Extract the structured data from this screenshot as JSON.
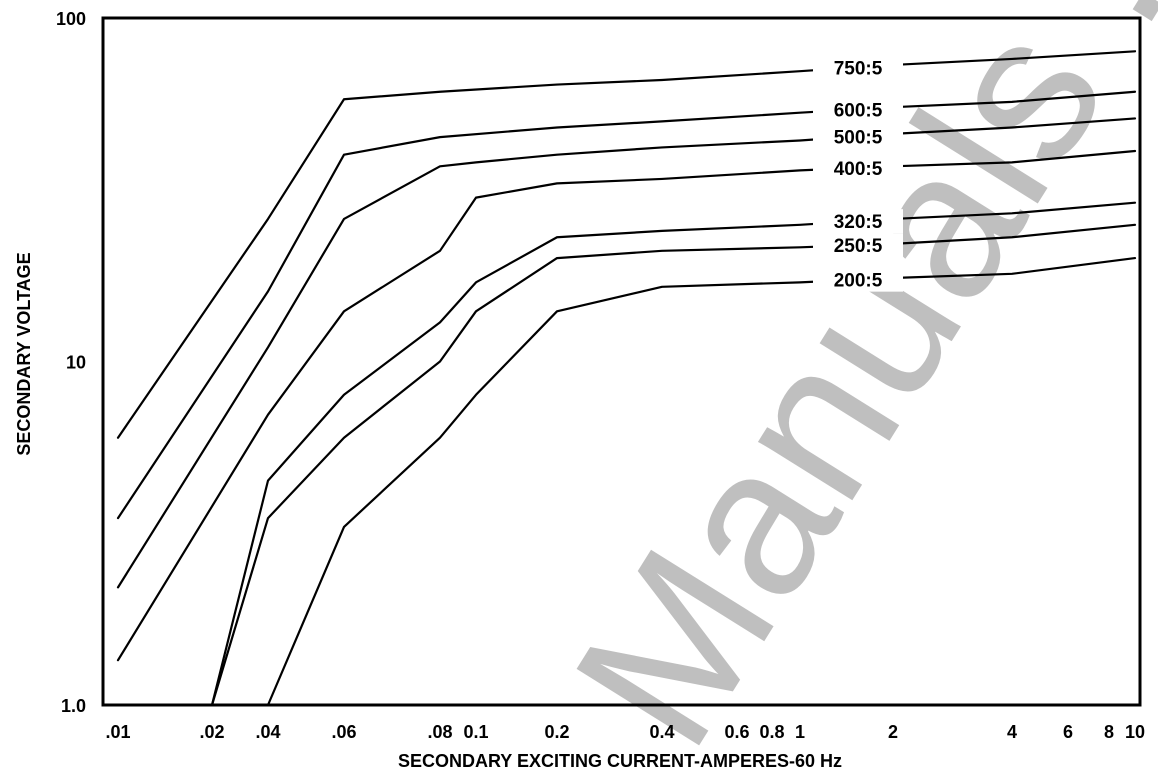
{
  "watermark": "Manuals . c",
  "chart_data": {
    "type": "line",
    "xlabel": "SECONDARY EXCITING CURRENT-AMPERES-60 Hz",
    "ylabel": "SECONDARY VOLTAGE",
    "y_scale": "log",
    "ylim": [
      1,
      100
    ],
    "x_ticks": [
      ".01",
      ".02",
      ".04",
      ".06",
      ".08",
      "0.1",
      "0.2",
      "0.4",
      "0.6",
      "0.8",
      "1",
      "2",
      "4",
      "6",
      "8",
      "10"
    ],
    "y_ticks": [
      "1.0",
      "10",
      "100"
    ],
    "series": [
      {
        "name": "750:5",
        "label": "750:5",
        "points": [
          [
            ".01",
            6
          ],
          [
            ".04",
            26
          ],
          [
            ".06",
            58
          ],
          [
            ".08",
            61
          ],
          [
            "0.2",
            64
          ],
          [
            "0.4",
            66
          ],
          [
            "1",
            70
          ],
          [
            "2",
            73
          ],
          [
            "4",
            76
          ],
          [
            "10",
            80
          ]
        ]
      },
      {
        "name": "600:5",
        "label": "600:5",
        "points": [
          [
            ".01",
            3.5
          ],
          [
            ".04",
            16
          ],
          [
            ".06",
            40
          ],
          [
            ".08",
            45
          ],
          [
            "0.2",
            48
          ],
          [
            "0.4",
            50
          ],
          [
            "1",
            53
          ],
          [
            "2",
            55
          ],
          [
            "4",
            57
          ],
          [
            "10",
            61
          ]
        ]
      },
      {
        "name": "500:5",
        "label": "500:5",
        "points": [
          [
            ".01",
            2.2
          ],
          [
            ".04",
            11
          ],
          [
            ".06",
            26
          ],
          [
            "0.08",
            37
          ],
          [
            "0.1",
            38
          ],
          [
            "0.2",
            40
          ],
          [
            "0.4",
            42
          ],
          [
            "1",
            44
          ],
          [
            "2",
            46
          ],
          [
            "4",
            48
          ],
          [
            "10",
            51
          ]
        ]
      },
      {
        "name": "400:5",
        "label": "400:5",
        "points": [
          [
            ".01",
            1.35
          ],
          [
            ".04",
            7
          ],
          [
            ".06",
            14
          ],
          [
            "0.08",
            21
          ],
          [
            "0.1",
            30
          ],
          [
            "0.2",
            33
          ],
          [
            "0.4",
            34
          ],
          [
            "1",
            36
          ],
          [
            "2",
            37
          ],
          [
            "4",
            38
          ],
          [
            "10",
            41
          ]
        ]
      },
      {
        "name": "320:5",
        "label": "320:5",
        "points": [
          [
            ".02",
            1.0
          ],
          [
            ".04",
            4.5
          ],
          [
            ".06",
            8
          ],
          [
            "0.08",
            13
          ],
          [
            "0.1",
            17
          ],
          [
            "0.2",
            23
          ],
          [
            "0.4",
            24
          ],
          [
            "1",
            25
          ],
          [
            "2",
            26
          ],
          [
            "4",
            27
          ],
          [
            "10",
            29
          ]
        ]
      },
      {
        "name": "250:5",
        "label": "250:5",
        "points": [
          [
            ".02",
            1.0
          ],
          [
            ".04",
            3.5
          ],
          [
            ".06",
            6
          ],
          [
            "0.08",
            10
          ],
          [
            "0.1",
            14
          ],
          [
            "0.2",
            20
          ],
          [
            "0.4",
            21
          ],
          [
            "1",
            21.5
          ],
          [
            "2",
            22
          ],
          [
            "4",
            23
          ],
          [
            "10",
            25
          ]
        ]
      },
      {
        "name": "200:5",
        "label": "200:5",
        "points": [
          [
            ".04",
            1.0
          ],
          [
            ".06",
            3.3
          ],
          [
            "0.08",
            6
          ],
          [
            "0.1",
            8
          ],
          [
            "0.2",
            14
          ],
          [
            "0.4",
            16.5
          ],
          [
            "1",
            17
          ],
          [
            "2",
            17.5
          ],
          [
            "4",
            18
          ],
          [
            "10",
            20
          ]
        ]
      }
    ]
  }
}
